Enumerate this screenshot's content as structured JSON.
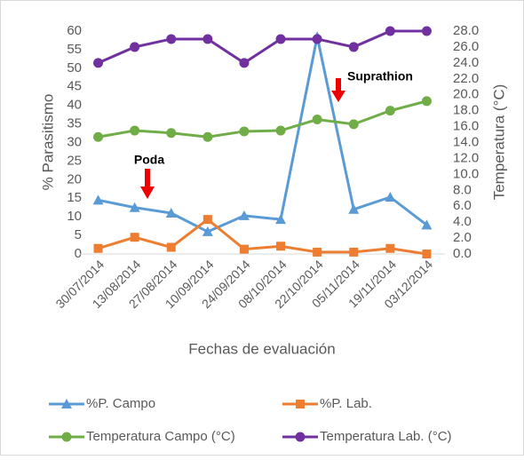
{
  "chart_data": {
    "type": "line",
    "categories": [
      "30/07/2014",
      "13/08/2014",
      "27/08/2014",
      "10/09/2014",
      "24/09/2014",
      "08/10/2014",
      "22/10/2014",
      "05/11/2014",
      "19/11/2014",
      "03/12/2014"
    ],
    "series": [
      {
        "name": "%P. Campo",
        "color": "#5b9bd5",
        "marker": "triangle",
        "values": [
          14.5,
          12.5,
          11,
          6,
          10.3,
          9.3,
          58.5,
          12,
          15.3,
          7.8
        ]
      },
      {
        "name": "%P. Lab.",
        "color": "#ed7d31",
        "marker": "square",
        "values": [
          1.5,
          4.5,
          1.8,
          9.3,
          1.3,
          2.1,
          0.5,
          0.5,
          1.5,
          0
        ]
      },
      {
        "name": "Temperatura Campo (°C)",
        "color": "#70ad47",
        "marker": "circle",
        "axis": "y2",
        "values": [
          14.7,
          15.5,
          15.2,
          14.7,
          15.4,
          15.5,
          16.9,
          16.3,
          18.0,
          19.2
        ]
      },
      {
        "name": "Temperatura Lab. (°C)",
        "color": "#7030a0",
        "marker": "circle",
        "axis": "y2",
        "values": [
          24,
          26,
          27,
          27,
          24,
          27,
          27,
          26,
          28,
          28
        ]
      }
    ],
    "ylabel": "% Parasitismo",
    "y2label": "Temperatura (°C)",
    "xlabel": "Fechas de evaluación",
    "ylim": [
      0,
      60
    ],
    "yticks": [
      0,
      5,
      10,
      15,
      20,
      25,
      30,
      35,
      40,
      45,
      50,
      55,
      60
    ],
    "y2lim": [
      0,
      28
    ],
    "y2ticks": [
      {
        "value": 0,
        "label": "0.0"
      },
      {
        "value": 2,
        "label": "2.0"
      },
      {
        "value": 4,
        "label": "4.0"
      },
      {
        "value": 6,
        "label": "6.0"
      },
      {
        "value": 8,
        "label": "8.0"
      },
      {
        "value": 10,
        "label": "10.0"
      },
      {
        "value": 12,
        "label": "12.0"
      },
      {
        "value": 14,
        "label": "14.0"
      },
      {
        "value": 16,
        "label": "16.0"
      },
      {
        "value": 18,
        "label": "18.0"
      },
      {
        "value": 20,
        "label": "20.0"
      },
      {
        "value": 22,
        "label": "22.0"
      },
      {
        "value": 24,
        "label": "24.0"
      },
      {
        "value": 26,
        "label": "26.0"
      },
      {
        "value": 28,
        "label": "28.0"
      }
    ],
    "annotations": [
      "Poda",
      "Suprathion"
    ],
    "grid": false,
    "legend": "bottom"
  }
}
